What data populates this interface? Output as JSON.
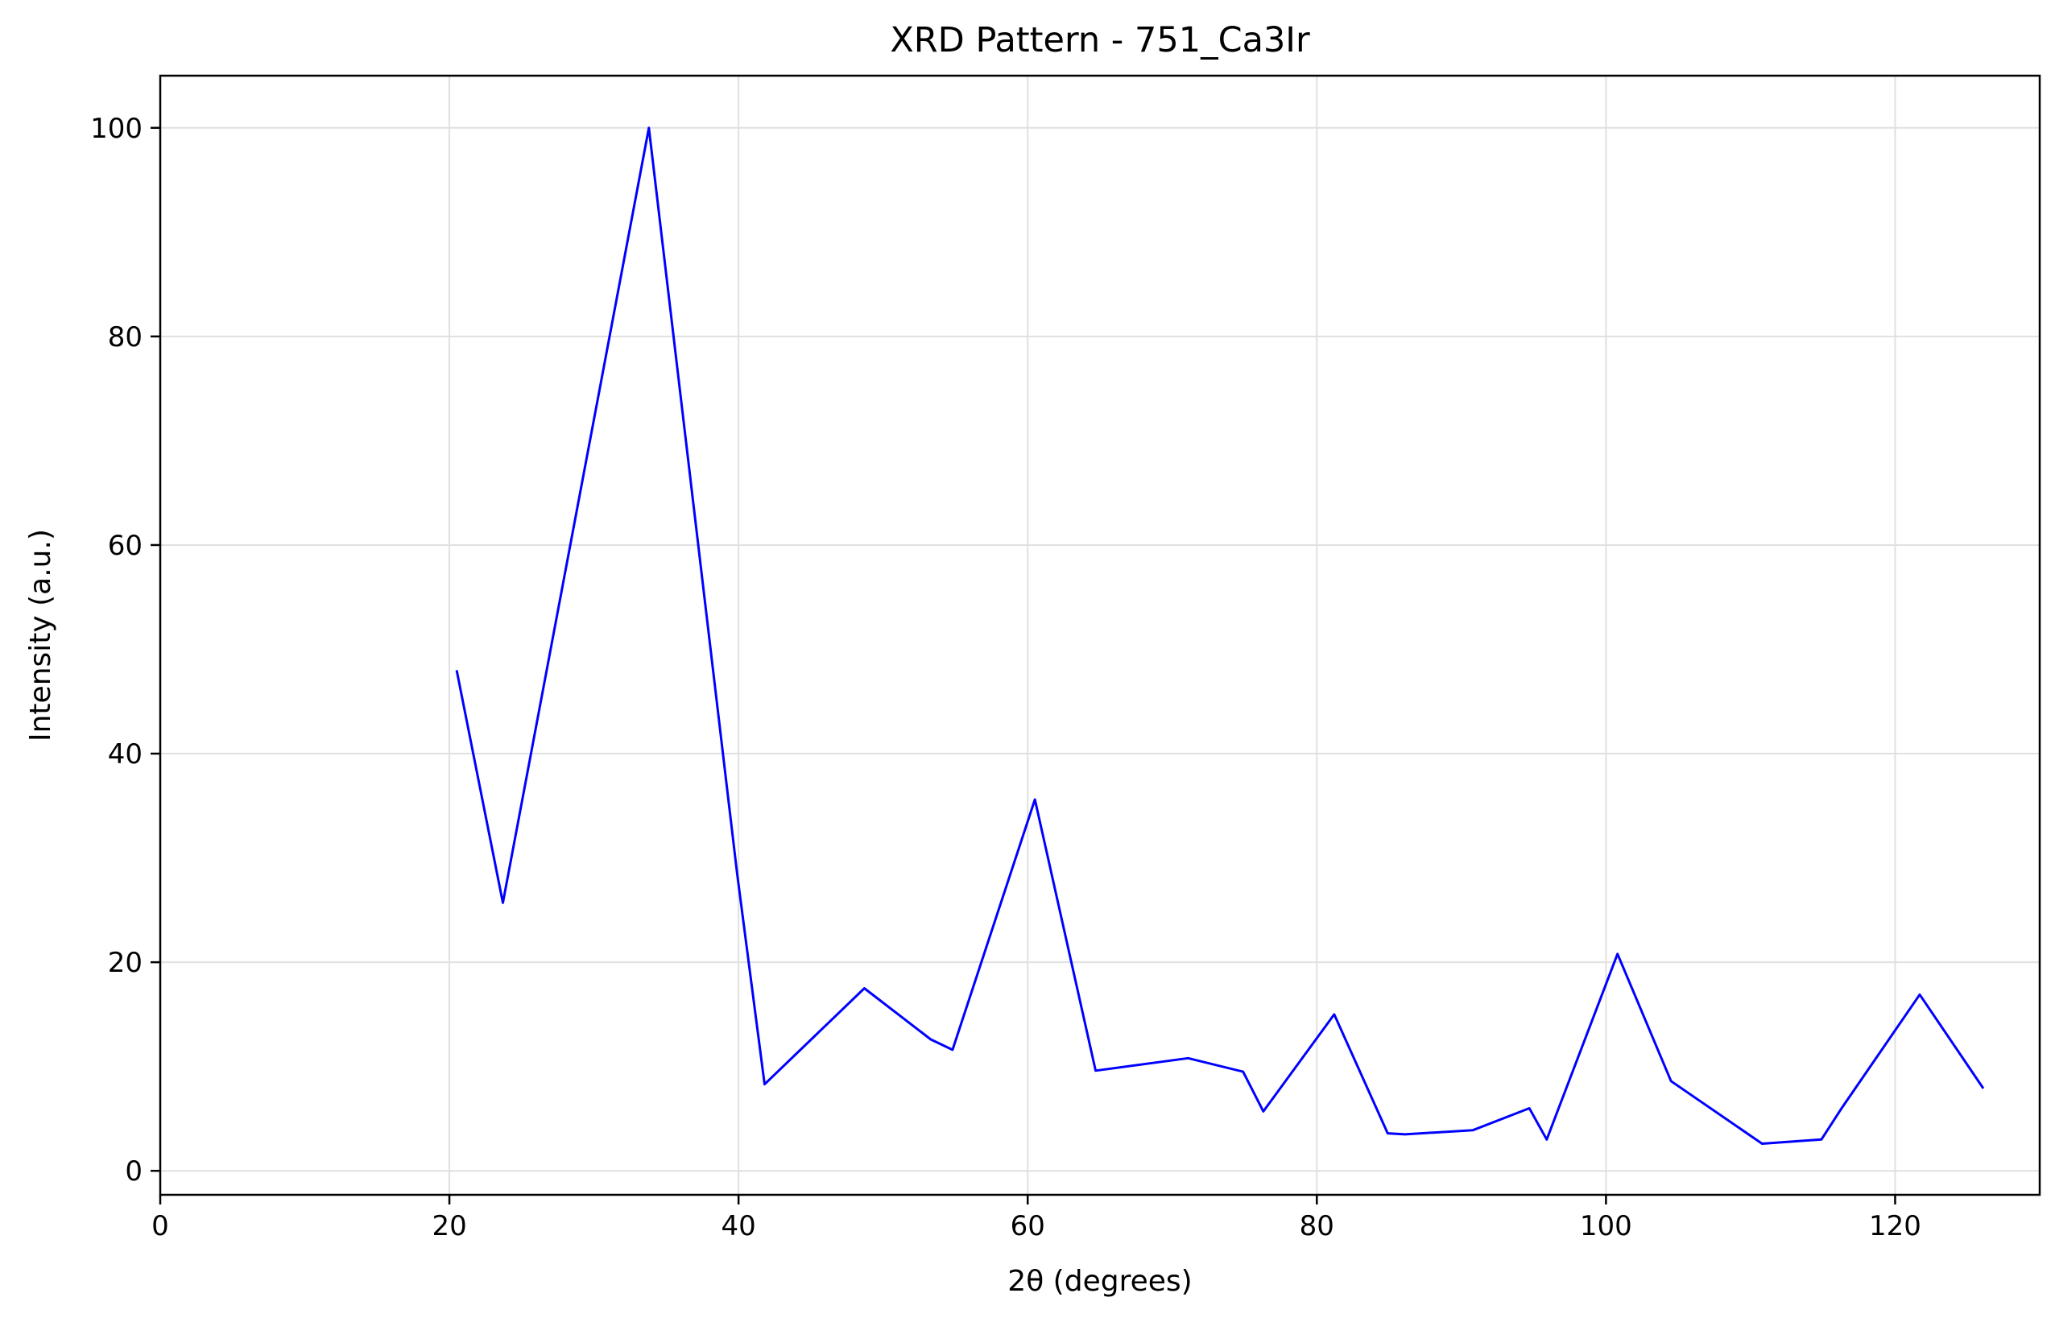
{
  "chart_data": {
    "type": "line",
    "title": "XRD Pattern - 751_Ca3Ir",
    "xlabel": "2θ (degrees)",
    "ylabel": "Intensity (a.u.)",
    "xlim": [
      0,
      130
    ],
    "ylim": [
      -2.3,
      105
    ],
    "xticks": [
      0,
      20,
      40,
      60,
      80,
      100,
      120
    ],
    "yticks": [
      0,
      20,
      40,
      60,
      80,
      100
    ],
    "grid": true,
    "legend": "none",
    "line_color": "#0000ff",
    "series": [
      {
        "x": [
          20.5,
          23.7,
          33.8,
          39.9,
          41.8,
          48.7,
          53.3,
          54.8,
          60.5,
          64.7,
          71.1,
          74.9,
          76.3,
          81.2,
          84.9,
          86.1,
          90.8,
          94.7,
          95.9,
          100.8,
          104.5,
          110.8,
          114.9,
          116.3,
          121.7,
          126.1
        ],
        "values": [
          48.0,
          25.7,
          100.0,
          28.5,
          8.3,
          17.5,
          12.6,
          11.6,
          35.6,
          9.6,
          10.8,
          9.5,
          5.7,
          15.0,
          3.6,
          3.5,
          3.9,
          6.0,
          3.0,
          20.8,
          8.6,
          2.6,
          3.0,
          6.0,
          16.9,
          7.9
        ]
      }
    ]
  }
}
